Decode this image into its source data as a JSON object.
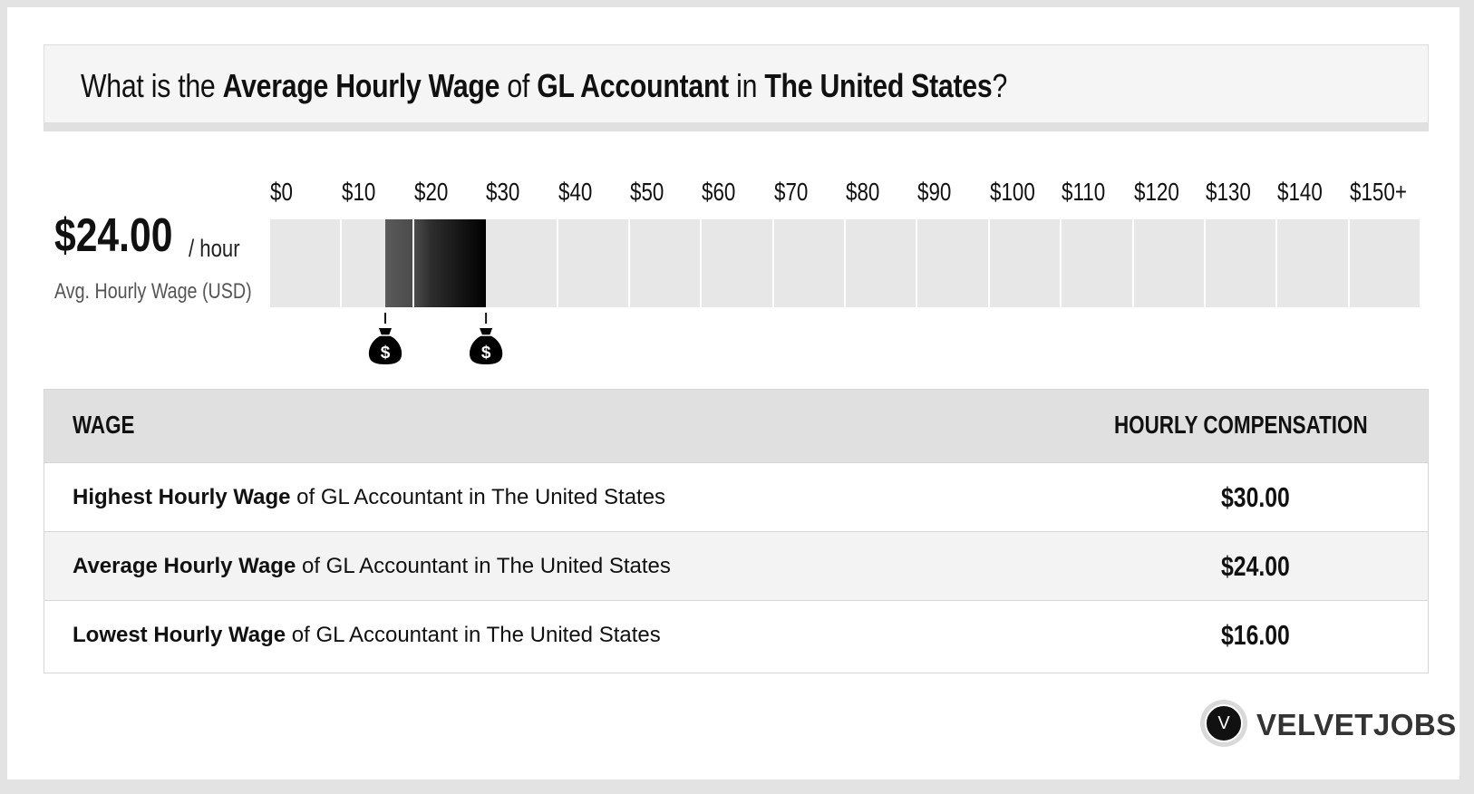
{
  "title": {
    "part1": "What is the ",
    "bold1": "Average Hourly Wage",
    "part2": " of ",
    "bold2": "GL Accountant",
    "part3": " in ",
    "bold3": "The United States",
    "part4": "?"
  },
  "summary": {
    "value": "$24.00",
    "unit": "/ hour",
    "label": "Avg. Hourly Wage (USD)"
  },
  "chart_data": {
    "type": "bar",
    "orientation": "horizontal-range",
    "tick_labels": [
      "$0",
      "$10",
      "$20",
      "$30",
      "$40",
      "$50",
      "$60",
      "$70",
      "$80",
      "$90",
      "$100",
      "$110",
      "$120",
      "$130",
      "$140",
      "$150+"
    ],
    "range": {
      "low": 16,
      "average": 24,
      "high": 30
    },
    "xlim": [
      0,
      150
    ],
    "markers": [
      {
        "value": 16,
        "icon": "money-bag-icon",
        "symbol": "$"
      },
      {
        "value": 30,
        "icon": "money-bag-icon",
        "symbol": "$"
      }
    ]
  },
  "table": {
    "headers": {
      "wage": "WAGE",
      "comp": "HOURLY COMPENSATION"
    },
    "rows": [
      {
        "bold": "Highest Hourly Wage",
        "rest": " of GL Accountant in The United States",
        "value": "$30.00"
      },
      {
        "bold": "Average Hourly Wage",
        "rest": " of GL Accountant in The United States",
        "value": "$24.00"
      },
      {
        "bold": "Lowest Hourly Wage",
        "rest": " of GL Accountant in The United States",
        "value": "$16.00"
      }
    ]
  },
  "brand": {
    "initial": "V",
    "name": "VELVETJOBS"
  },
  "colors": {
    "bar_bg": "#e7e7e7",
    "bar_fill_dark": "#000000",
    "bar_fill_light": "#5a5a5a",
    "header_bg": "#e0e0e0",
    "row_alt": "#f3f3f3"
  }
}
